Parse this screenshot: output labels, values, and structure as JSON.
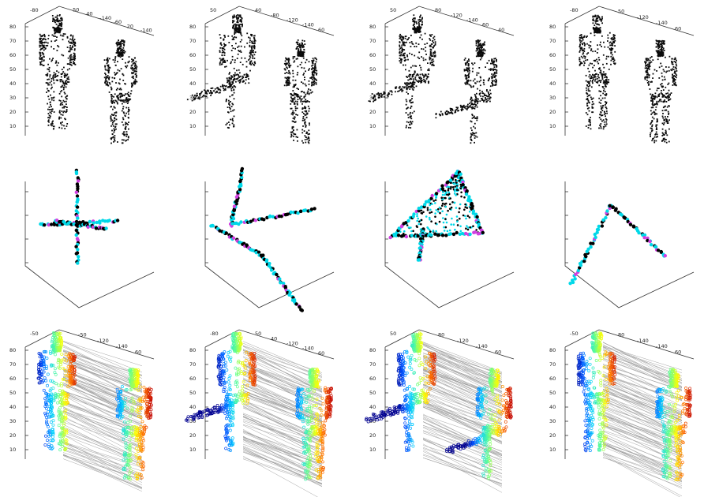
{
  "colors": {
    "silhouette": "#0a0a0a",
    "graph_edge": "#00d8e8",
    "graph_edge_alt": "#d040e0",
    "graph_node": "#000000",
    "correspondence_line": "#9a9a9a",
    "colormap": [
      "#00008f",
      "#0050ff",
      "#00d0ff",
      "#60ff90",
      "#ffff00",
      "#ff7000",
      "#c00000"
    ]
  },
  "rows": [
    {
      "kind": "point-cloud",
      "panels": [
        {
          "top_ticks": [
            "-80",
            "50",
            "40",
            "-140",
            "-60",
            "20",
            "-140"
          ],
          "z_ticks": [
            "80",
            "70",
            "60",
            "50",
            "40",
            "30",
            "20",
            "10"
          ]
        },
        {
          "top_ticks": [
            "50",
            "40",
            "-80",
            "-120",
            "-140",
            "60"
          ],
          "z_ticks": [
            "80",
            "70",
            "60",
            "50",
            "40",
            "30",
            "20",
            "10"
          ]
        },
        {
          "top_ticks": [
            "50",
            "80",
            "-120",
            "-140",
            "60",
            "40"
          ],
          "z_ticks": [
            "80",
            "70",
            "60",
            "50",
            "40",
            "30",
            "20",
            "10"
          ]
        },
        {
          "top_ticks": [
            "-80",
            "50",
            "-120",
            "-140",
            "60"
          ],
          "z_ticks": [
            "80",
            "70",
            "60",
            "50",
            "40",
            "30",
            "20",
            "10"
          ]
        }
      ]
    },
    {
      "kind": "graph-embedding",
      "panels": [
        {
          "shape": "cross"
        },
        {
          "shape": "tripod"
        },
        {
          "shape": "triangle"
        },
        {
          "shape": "arc"
        }
      ]
    },
    {
      "kind": "correspondence",
      "panels": [
        {
          "top_ticks": [
            "-50",
            "-50",
            "-120",
            "-140",
            "60"
          ],
          "z_ticks": [
            "80",
            "70",
            "60",
            "50",
            "40",
            "30",
            "20",
            "10"
          ]
        },
        {
          "top_ticks": [
            "-80",
            "50",
            "40",
            "-120",
            "-140",
            "60"
          ],
          "z_ticks": [
            "80",
            "70",
            "60",
            "50",
            "40",
            "30",
            "20",
            "10"
          ]
        },
        {
          "top_ticks": [
            "50",
            "80",
            "-120",
            "-140",
            "60"
          ],
          "z_ticks": [
            "80",
            "70",
            "60",
            "50",
            "40",
            "30",
            "20",
            "10"
          ]
        },
        {
          "top_ticks": [
            "-50",
            "80",
            "-140",
            "-140",
            "60"
          ],
          "z_ticks": [
            "80",
            "70",
            "60",
            "50",
            "40",
            "30",
            "20",
            "10"
          ]
        }
      ]
    }
  ]
}
